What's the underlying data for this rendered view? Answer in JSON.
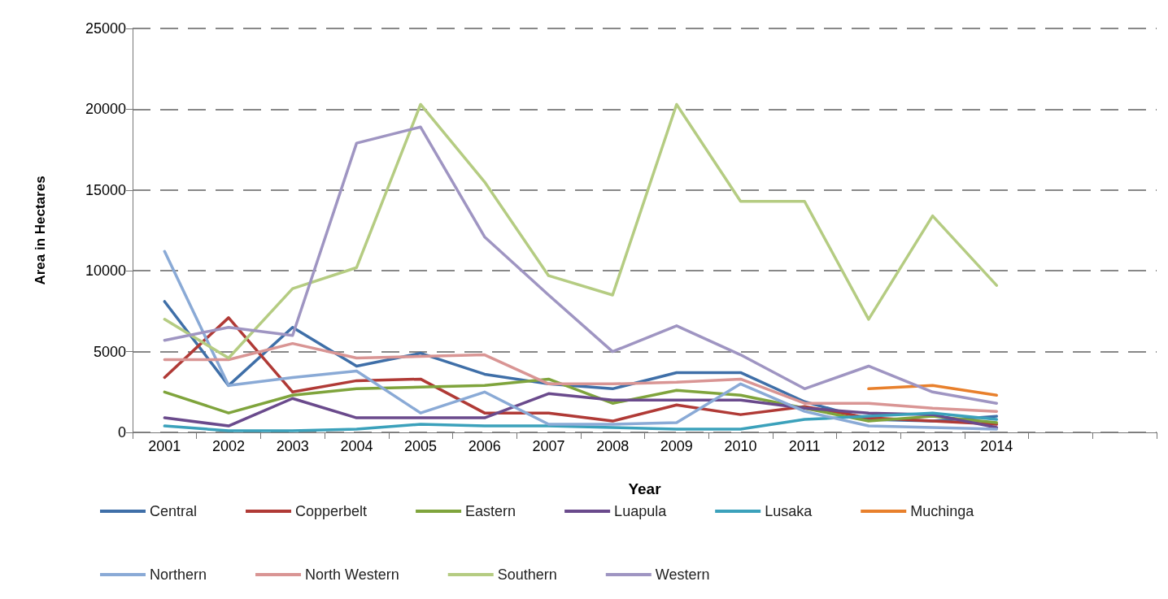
{
  "chart_data": {
    "type": "line",
    "xlabel": "Year",
    "ylabel": "Area in Hectares",
    "categories": [
      "2001",
      "2002",
      "2003",
      "2004",
      "2005",
      "2006",
      "2007",
      "2008",
      "2009",
      "2010",
      "2011",
      "2012",
      "2013",
      "2014",
      null,
      null
    ],
    "ylim": [
      0,
      25000
    ],
    "yticks": [
      0,
      5000,
      10000,
      15000,
      20000,
      25000
    ],
    "grid": "y",
    "legend": "bottom",
    "marker": "none",
    "line_style": "solid",
    "series": [
      {
        "name": "Central",
        "color": "#3f6fa8",
        "values": [
          8100,
          2900,
          6500,
          4100,
          4900,
          3600,
          3000,
          2700,
          3700,
          3700,
          1900,
          800,
          700,
          1000,
          null,
          null
        ]
      },
      {
        "name": "Copperbelt",
        "color": "#b03a36",
        "values": [
          3400,
          7100,
          2500,
          3200,
          3300,
          1200,
          1200,
          700,
          1700,
          1100,
          1600,
          900,
          700,
          500,
          null,
          null
        ]
      },
      {
        "name": "Eastern",
        "color": "#7fa43c",
        "values": [
          2500,
          1200,
          2300,
          2700,
          2800,
          2900,
          3300,
          1800,
          2600,
          2300,
          1500,
          700,
          1000,
          600,
          null,
          null
        ]
      },
      {
        "name": "Luapula",
        "color": "#6a4a8c",
        "values": [
          900,
          400,
          2100,
          900,
          900,
          900,
          2400,
          2000,
          2000,
          2000,
          1500,
          1200,
          1100,
          300,
          null,
          null
        ]
      },
      {
        "name": "Lusaka",
        "color": "#3ba1bb",
        "values": [
          400,
          100,
          100,
          200,
          500,
          400,
          400,
          300,
          200,
          200,
          800,
          1000,
          1200,
          800,
          null,
          null
        ]
      },
      {
        "name": "Muchinga",
        "color": "#e8802c",
        "values": [
          null,
          null,
          null,
          null,
          null,
          null,
          null,
          null,
          null,
          null,
          null,
          2700,
          2900,
          2300,
          null,
          null
        ]
      },
      {
        "name": "Northern",
        "color": "#8aaad6",
        "values": [
          11200,
          2900,
          3400,
          3800,
          1200,
          2500,
          500,
          500,
          600,
          3000,
          1300,
          400,
          300,
          200,
          null,
          null
        ]
      },
      {
        "name": "North Western",
        "color": "#d99594",
        "values": [
          4500,
          4500,
          5500,
          4600,
          4700,
          4800,
          3000,
          3000,
          3100,
          3300,
          1800,
          1800,
          1500,
          1300,
          null,
          null
        ]
      },
      {
        "name": "Southern",
        "color": "#b5cc82",
        "values": [
          7000,
          4600,
          8900,
          10200,
          20300,
          15500,
          9700,
          8500,
          20300,
          14300,
          14300,
          7000,
          13400,
          9100,
          null,
          null
        ]
      },
      {
        "name": "Western",
        "color": "#9f95c2",
        "values": [
          5700,
          6500,
          6000,
          17900,
          18900,
          12100,
          8500,
          5000,
          6600,
          4800,
          2700,
          4100,
          2500,
          1800,
          null,
          null
        ]
      }
    ]
  }
}
